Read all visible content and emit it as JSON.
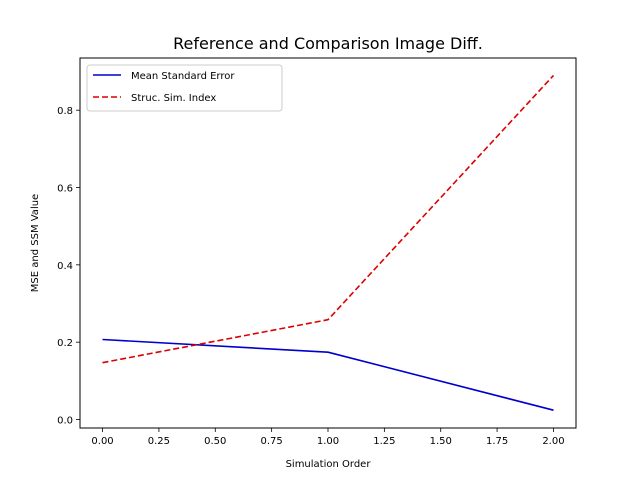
{
  "chart_data": {
    "type": "line",
    "title": "Reference and Comparison Image Diff.",
    "xlabel": "Simulation Order",
    "ylabel": "MSE and SSM Value",
    "x": [
      0.0,
      1.0,
      2.0
    ],
    "xlim": [
      -0.1,
      2.1
    ],
    "ylim": [
      -0.022,
      0.935
    ],
    "xticks": [
      0.0,
      0.25,
      0.5,
      0.75,
      1.0,
      1.25,
      1.5,
      1.75,
      2.0
    ],
    "xtick_labels": [
      "0.00",
      "0.25",
      "0.50",
      "0.75",
      "1.00",
      "1.25",
      "1.50",
      "1.75",
      "2.00"
    ],
    "yticks": [
      0.0,
      0.2,
      0.4,
      0.6,
      0.8
    ],
    "ytick_labels": [
      "0.0",
      "0.2",
      "0.4",
      "0.6",
      "0.8"
    ],
    "grid": false,
    "legend_position": "top-left",
    "series": [
      {
        "name": "Mean Standard Error",
        "values": [
          0.207,
          0.174,
          0.024
        ],
        "color": "#0000cc",
        "style": "solid"
      },
      {
        "name": "Struc. Sim. Index",
        "values": [
          0.147,
          0.258,
          0.89
        ],
        "color": "#dd0000",
        "style": "dashed"
      }
    ]
  }
}
